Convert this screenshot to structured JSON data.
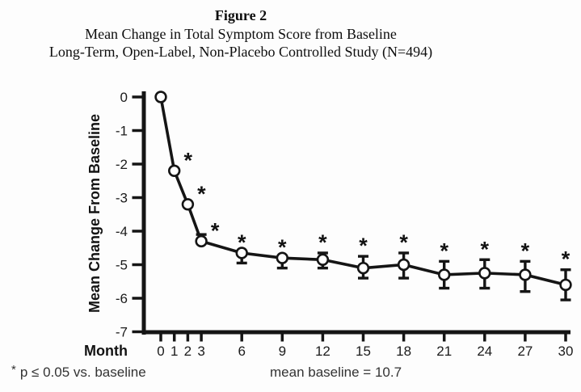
{
  "figure": {
    "label": "Figure 2",
    "subtitle1": "Mean Change in Total Symptom Score from Baseline",
    "subtitle2": "Long-Term, Open-Label, Non-Placebo Controlled Study (N=494)"
  },
  "footnotes": {
    "marker": "*",
    "significance": "p ≤ 0.05 vs. baseline",
    "baseline_note": "mean baseline = 10.7"
  },
  "chart_data": {
    "type": "line",
    "title": "Mean Change in Total Symptom Score from Baseline",
    "xlabel": "Month",
    "ylabel": "Mean Change From Baseline",
    "xlim": [
      0,
      30
    ],
    "ylim": [
      -7,
      0
    ],
    "xticks": [
      0,
      1,
      2,
      3,
      6,
      9,
      12,
      15,
      18,
      21,
      24,
      27,
      30
    ],
    "yticks": [
      0,
      -1,
      -2,
      -3,
      -4,
      -5,
      -6,
      -7
    ],
    "grid": false,
    "legend": "none",
    "marker_style": "open-circle",
    "ink_color": "#151515",
    "significance_marker": "*",
    "series": [
      {
        "name": "Mean change in total symptom score",
        "points": [
          {
            "month": 0,
            "value": 0.0,
            "err_up": 0,
            "err_down": 0,
            "significant": false
          },
          {
            "month": 1,
            "value": -2.2,
            "err_up": 0,
            "err_down": 0,
            "significant": true
          },
          {
            "month": 2,
            "value": -3.2,
            "err_up": 0,
            "err_down": 0,
            "significant": true
          },
          {
            "month": 3,
            "value": -4.3,
            "err_up": 0.2,
            "err_down": 0,
            "significant": true
          },
          {
            "month": 6,
            "value": -4.65,
            "err_up": 0,
            "err_down": 0.3,
            "significant": true
          },
          {
            "month": 9,
            "value": -4.8,
            "err_up": 0,
            "err_down": 0.3,
            "significant": true
          },
          {
            "month": 12,
            "value": -4.85,
            "err_up": 0.2,
            "err_down": 0.25,
            "significant": true
          },
          {
            "month": 15,
            "value": -5.1,
            "err_up": 0.35,
            "err_down": 0.3,
            "significant": true
          },
          {
            "month": 18,
            "value": -5.0,
            "err_up": 0.35,
            "err_down": 0.4,
            "significant": true
          },
          {
            "month": 21,
            "value": -5.3,
            "err_up": 0.4,
            "err_down": 0.4,
            "significant": true
          },
          {
            "month": 24,
            "value": -5.25,
            "err_up": 0.4,
            "err_down": 0.45,
            "significant": true
          },
          {
            "month": 27,
            "value": -5.3,
            "err_up": 0.4,
            "err_down": 0.5,
            "significant": true
          },
          {
            "month": 30,
            "value": -5.6,
            "err_up": 0.45,
            "err_down": 0.45,
            "significant": true
          }
        ]
      }
    ]
  }
}
